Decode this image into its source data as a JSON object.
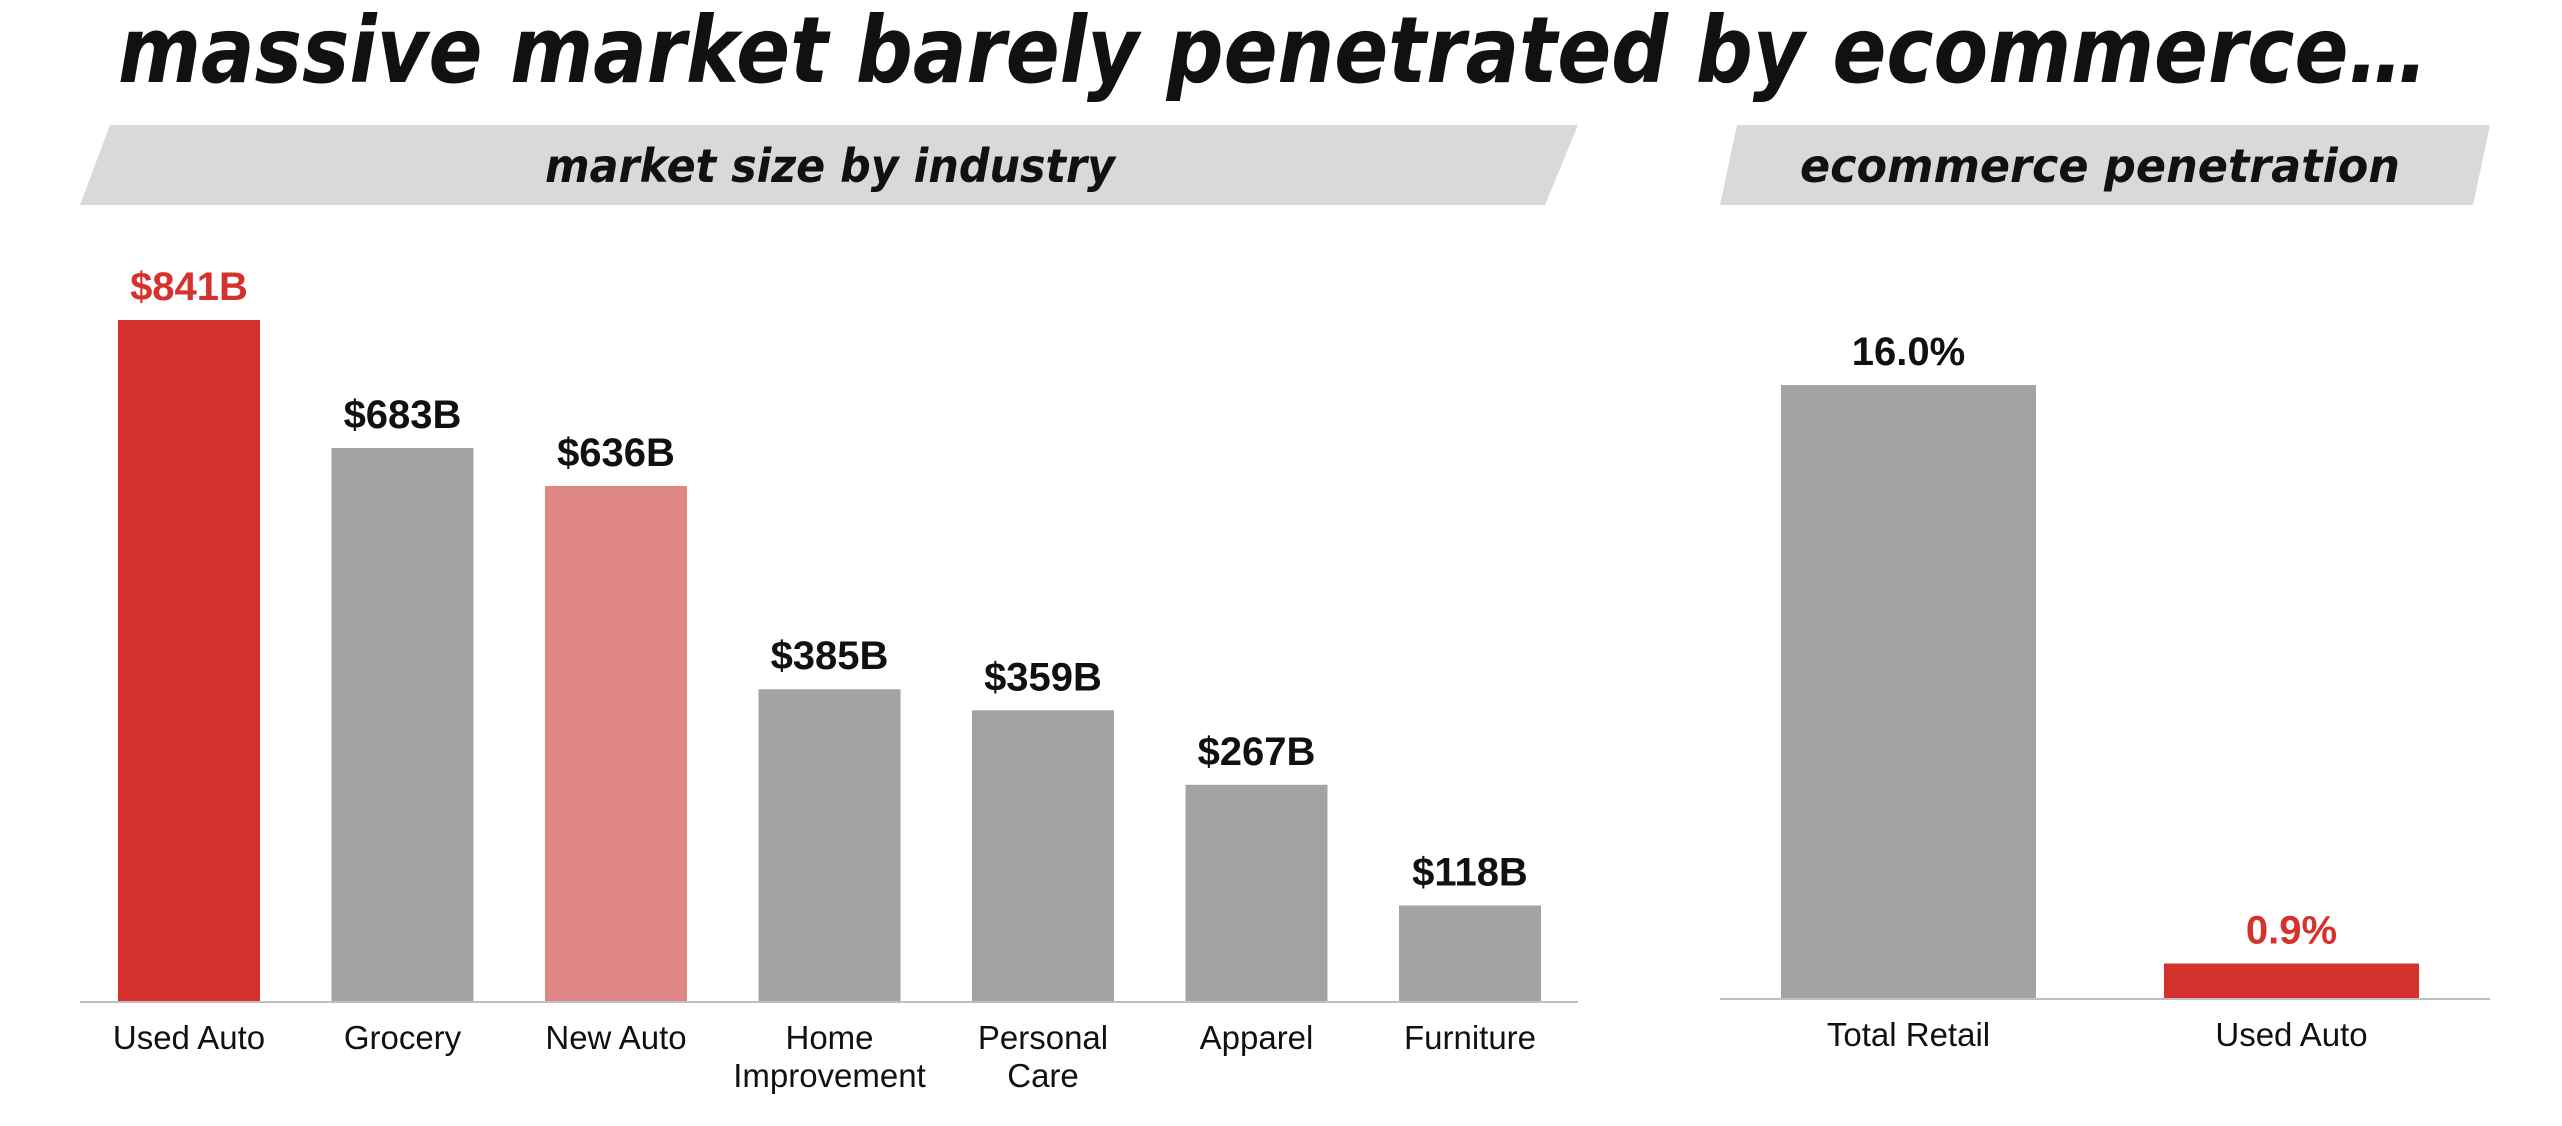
{
  "title": "massive market barely penetrated by ecommerce…",
  "colors": {
    "highlight": "#d5322d",
    "highlight_light": "#dd8683",
    "neutral": "#a3a3a3",
    "banner": "#d9d9d9",
    "text": "#111111",
    "axis": "#bfbfbf"
  },
  "chart_data": [
    {
      "type": "bar",
      "title": "market size by industry",
      "unit": "USD billions",
      "categories": [
        [
          "Used Auto"
        ],
        [
          "Grocery"
        ],
        [
          "New Auto"
        ],
        [
          "Home",
          "Improvement"
        ],
        [
          "Personal",
          "Care"
        ],
        [
          "Apparel"
        ],
        [
          "Furniture"
        ]
      ],
      "values": [
        841,
        683,
        636,
        385,
        359,
        267,
        118
      ],
      "value_labels": [
        "$841B",
        "$683B",
        "$636B",
        "$385B",
        "$359B",
        "$267B",
        "$118B"
      ],
      "bar_colors": [
        "highlight",
        "neutral",
        "highlight_light",
        "neutral",
        "neutral",
        "neutral",
        "neutral"
      ],
      "label_colors": [
        "highlight",
        "text",
        "text",
        "text",
        "text",
        "text",
        "text"
      ],
      "ylim": [
        0,
        841
      ],
      "grid": false,
      "legend": "none"
    },
    {
      "type": "bar",
      "title": "ecommerce penetration",
      "unit": "percent",
      "categories": [
        [
          "Total Retail"
        ],
        [
          "Used Auto"
        ]
      ],
      "values": [
        16.0,
        0.9
      ],
      "value_labels": [
        "16.0%",
        "0.9%"
      ],
      "bar_colors": [
        "neutral",
        "highlight"
      ],
      "label_colors": [
        "text",
        "highlight"
      ],
      "ylim": [
        0,
        16.0
      ],
      "grid": false,
      "legend": "none"
    }
  ]
}
